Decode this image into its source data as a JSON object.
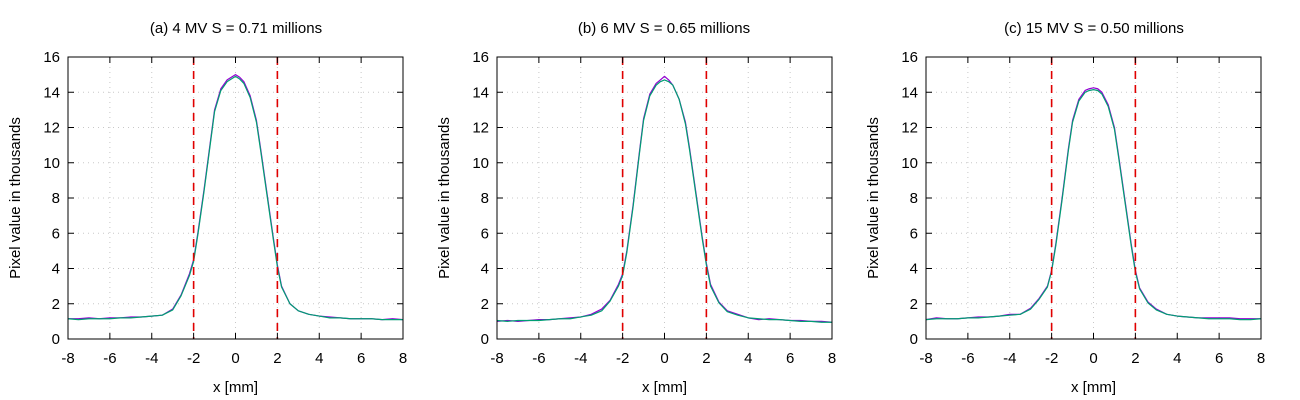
{
  "colors": {
    "series_1": "#9400d3",
    "series_2": "#009e73",
    "series_3": "#56b4e9",
    "marker": "#e00000"
  },
  "chart_data": [
    {
      "type": "line",
      "title": "(a) 4 MV S = 0.71 millions",
      "xlabel": "x [mm]",
      "ylabel": "Pixel value in thousands",
      "xlim": [
        -8,
        8
      ],
      "ylim": [
        0,
        16
      ],
      "xticks": [
        "-8",
        "-6",
        "-4",
        "-2",
        "0",
        "2",
        "4",
        "6",
        "8"
      ],
      "yticks": [
        "0",
        "2",
        "4",
        "6",
        "8",
        "10",
        "12",
        "14",
        "16"
      ],
      "grid": true,
      "markers": [
        -2,
        2
      ],
      "series": [
        {
          "color": "#9400d3",
          "x": [
            -8,
            -7.5,
            -7,
            -6.5,
            -6,
            -5.5,
            -5,
            -4.5,
            -4,
            -3.5,
            -3,
            -2.6,
            -2.2,
            -2,
            -1.8,
            -1.5,
            -1.2,
            -1,
            -0.7,
            -0.4,
            -0.2,
            0,
            0.2,
            0.4,
            0.7,
            1,
            1.2,
            1.5,
            1.8,
            2,
            2.2,
            2.6,
            3,
            3.5,
            4,
            4.5,
            5,
            5.5,
            6,
            6.5,
            7,
            7.5,
            8
          ],
          "y": [
            1.15,
            1.15,
            1.2,
            1.15,
            1.2,
            1.2,
            1.25,
            1.25,
            1.3,
            1.35,
            1.7,
            2.5,
            3.7,
            4.5,
            6.0,
            8.5,
            11.2,
            13.0,
            14.2,
            14.7,
            14.85,
            15.0,
            14.85,
            14.6,
            13.8,
            12.4,
            10.8,
            8.3,
            5.8,
            4.2,
            3.0,
            2.0,
            1.6,
            1.4,
            1.3,
            1.25,
            1.2,
            1.15,
            1.15,
            1.15,
            1.1,
            1.15,
            1.1
          ]
        },
        {
          "color": "#009e73",
          "x": [
            -8,
            -7.5,
            -7,
            -6.5,
            -6,
            -5.5,
            -5,
            -4.5,
            -4,
            -3.5,
            -3,
            -2.6,
            -2.2,
            -2,
            -1.8,
            -1.5,
            -1.2,
            -1,
            -0.7,
            -0.4,
            -0.2,
            0,
            0.2,
            0.4,
            0.7,
            1,
            1.2,
            1.5,
            1.8,
            2,
            2.2,
            2.6,
            3,
            3.5,
            4,
            4.5,
            5,
            5.5,
            6,
            6.5,
            7,
            7.5,
            8
          ],
          "y": [
            1.15,
            1.1,
            1.15,
            1.15,
            1.15,
            1.2,
            1.2,
            1.25,
            1.3,
            1.35,
            1.65,
            2.45,
            3.6,
            4.4,
            5.9,
            8.4,
            11.1,
            12.9,
            14.1,
            14.6,
            14.75,
            14.9,
            14.75,
            14.5,
            13.7,
            12.3,
            10.7,
            8.2,
            5.7,
            4.1,
            2.95,
            2.0,
            1.6,
            1.4,
            1.3,
            1.2,
            1.2,
            1.15,
            1.15,
            1.15,
            1.1,
            1.1,
            1.1
          ]
        }
      ]
    },
    {
      "type": "line",
      "title": "(b) 6 MV S = 0.65 millions",
      "xlabel": "x [mm]",
      "ylabel": "Pixel value in thousands",
      "xlim": [
        -8,
        8
      ],
      "ylim": [
        0,
        16
      ],
      "xticks": [
        "-8",
        "-6",
        "-4",
        "-2",
        "0",
        "2",
        "4",
        "6",
        "8"
      ],
      "yticks": [
        "0",
        "2",
        "4",
        "6",
        "8",
        "10",
        "12",
        "14",
        "16"
      ],
      "grid": true,
      "markers": [
        -2,
        2
      ],
      "series": [
        {
          "color": "#9400d3",
          "x": [
            -8,
            -7.5,
            -7,
            -6.5,
            -6,
            -5.5,
            -5,
            -4.5,
            -4,
            -3.5,
            -3,
            -2.6,
            -2.2,
            -2,
            -1.8,
            -1.5,
            -1.2,
            -1,
            -0.7,
            -0.4,
            -0.2,
            0,
            0.2,
            0.4,
            0.7,
            1,
            1.2,
            1.5,
            1.8,
            2,
            2.2,
            2.6,
            3,
            3.5,
            4,
            4.5,
            5,
            5.5,
            6,
            6.5,
            7,
            7.5,
            8
          ],
          "y": [
            1.0,
            1.05,
            1.0,
            1.05,
            1.1,
            1.1,
            1.15,
            1.2,
            1.25,
            1.4,
            1.7,
            2.2,
            3.1,
            3.7,
            5.0,
            7.6,
            10.6,
            12.5,
            13.9,
            14.5,
            14.7,
            14.9,
            14.7,
            14.4,
            13.6,
            12.3,
            10.8,
            8.3,
            5.8,
            4.3,
            3.1,
            2.1,
            1.6,
            1.4,
            1.2,
            1.1,
            1.15,
            1.1,
            1.05,
            1.05,
            1.0,
            1.0,
            0.95
          ]
        },
        {
          "color": "#009e73",
          "x": [
            -8,
            -7.5,
            -7,
            -6.5,
            -6,
            -5.5,
            -5,
            -4.5,
            -4,
            -3.5,
            -3,
            -2.6,
            -2.2,
            -2,
            -1.8,
            -1.5,
            -1.2,
            -1,
            -0.7,
            -0.4,
            -0.2,
            0,
            0.2,
            0.4,
            0.7,
            1,
            1.2,
            1.5,
            1.8,
            2,
            2.2,
            2.6,
            3,
            3.5,
            4,
            4.5,
            5,
            5.5,
            6,
            6.5,
            7,
            7.5,
            8
          ],
          "y": [
            1.05,
            1.0,
            1.05,
            1.05,
            1.05,
            1.1,
            1.15,
            1.15,
            1.25,
            1.35,
            1.6,
            2.15,
            3.0,
            3.6,
            4.9,
            7.5,
            10.5,
            12.4,
            13.8,
            14.4,
            14.6,
            14.7,
            14.6,
            14.4,
            13.6,
            12.2,
            10.7,
            8.2,
            5.7,
            4.2,
            3.0,
            2.05,
            1.55,
            1.35,
            1.2,
            1.15,
            1.1,
            1.1,
            1.05,
            1.0,
            1.0,
            0.95,
            0.95
          ]
        }
      ]
    },
    {
      "type": "line",
      "title": "(c) 15 MV S = 0.50 millions",
      "xlabel": "x [mm]",
      "ylabel": "Pixel value in thousands",
      "xlim": [
        -8,
        8
      ],
      "ylim": [
        0,
        16
      ],
      "xticks": [
        "-8",
        "-6",
        "-4",
        "-2",
        "0",
        "2",
        "4",
        "6",
        "8"
      ],
      "yticks": [
        "0",
        "2",
        "4",
        "6",
        "8",
        "10",
        "12",
        "14",
        "16"
      ],
      "grid": true,
      "markers": [
        -2,
        2
      ],
      "series": [
        {
          "color": "#9400d3",
          "x": [
            -8,
            -7.5,
            -7,
            -6.5,
            -6,
            -5.5,
            -5,
            -4.5,
            -4,
            -3.5,
            -3,
            -2.6,
            -2.2,
            -2,
            -1.8,
            -1.5,
            -1.2,
            -1,
            -0.7,
            -0.4,
            -0.2,
            0,
            0.2,
            0.4,
            0.7,
            1,
            1.2,
            1.5,
            1.8,
            2,
            2.2,
            2.6,
            3,
            3.5,
            4,
            4.5,
            5,
            5.5,
            6,
            6.5,
            7,
            7.5,
            8
          ],
          "y": [
            1.1,
            1.2,
            1.15,
            1.15,
            1.2,
            1.25,
            1.25,
            1.3,
            1.4,
            1.4,
            1.75,
            2.3,
            3.0,
            3.9,
            5.4,
            8.0,
            10.8,
            12.4,
            13.6,
            14.1,
            14.2,
            14.25,
            14.2,
            14.0,
            13.3,
            12.0,
            10.4,
            7.9,
            5.4,
            3.9,
            2.9,
            2.1,
            1.7,
            1.4,
            1.3,
            1.25,
            1.2,
            1.2,
            1.2,
            1.2,
            1.15,
            1.15,
            1.15
          ]
        },
        {
          "color": "#009e73",
          "x": [
            -8,
            -7.5,
            -7,
            -6.5,
            -6,
            -5.5,
            -5,
            -4.5,
            -4,
            -3.5,
            -3,
            -2.6,
            -2.2,
            -2,
            -1.8,
            -1.5,
            -1.2,
            -1,
            -0.7,
            -0.4,
            -0.2,
            0,
            0.2,
            0.4,
            0.7,
            1,
            1.2,
            1.5,
            1.8,
            2,
            2.2,
            2.6,
            3,
            3.5,
            4,
            4.5,
            5,
            5.5,
            6,
            6.5,
            7,
            7.5,
            8
          ],
          "y": [
            1.1,
            1.15,
            1.15,
            1.15,
            1.2,
            1.2,
            1.25,
            1.3,
            1.35,
            1.4,
            1.7,
            2.25,
            2.95,
            3.85,
            5.3,
            7.9,
            10.7,
            12.3,
            13.5,
            14.0,
            14.1,
            14.15,
            14.1,
            13.9,
            13.2,
            11.9,
            10.3,
            7.8,
            5.3,
            3.8,
            2.85,
            2.05,
            1.65,
            1.4,
            1.3,
            1.25,
            1.2,
            1.15,
            1.15,
            1.15,
            1.1,
            1.1,
            1.15
          ]
        }
      ]
    }
  ]
}
